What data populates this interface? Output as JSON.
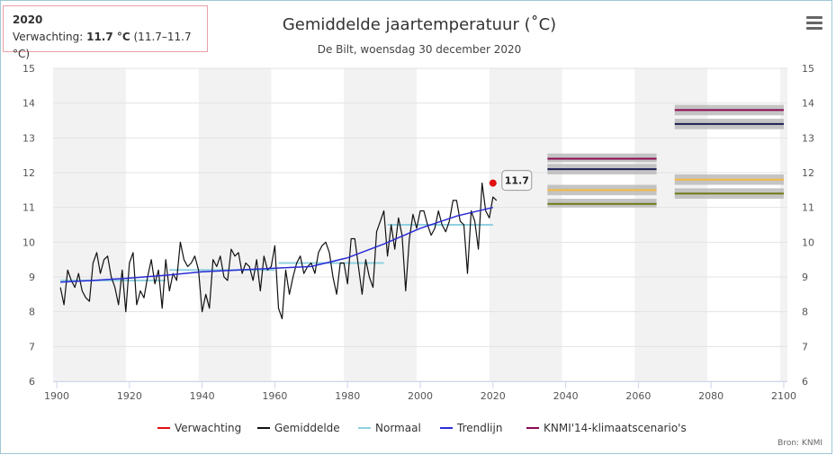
{
  "tooltip": {
    "year": "2020",
    "prefix": "Verwachting: ",
    "value": "11.7 °C",
    "range": " (11.7–11.7 °C)"
  },
  "source": "Bron: KNMI",
  "colors": {
    "forecast": "#e10e0e",
    "mean": "#111111",
    "normal": "#8fd0e0",
    "trend": "#2b2bd6",
    "scenario": "#8b0a50",
    "scenario_dark": "#1e1e55",
    "scenario_orange": "#f5b942",
    "scenario_olive": "#6f7a16",
    "band": "#bbbbbb",
    "alt_band": "#f2f2f2"
  },
  "chart_data": {
    "type": "line",
    "title": "Gemiddelde jaartemperatuur (˚C)",
    "subtitle": "De Bilt, woensdag 30 december 2020",
    "xlim": [
      1899,
      2101
    ],
    "ylim": [
      6,
      15
    ],
    "x_ticks": [
      1900,
      1920,
      1940,
      1960,
      1980,
      2000,
      2020,
      2040,
      2060,
      2080,
      2100
    ],
    "y_ticks": [
      6,
      7,
      8,
      9,
      10,
      11,
      12,
      13,
      14,
      15
    ],
    "alt_bands": [
      [
        1899,
        1919
      ],
      [
        1939,
        1959
      ],
      [
        1979,
        1999
      ],
      [
        2019,
        2039
      ],
      [
        2059,
        2079
      ],
      [
        2099,
        2101
      ]
    ],
    "legend": [
      "Verwachting",
      "Gemiddelde",
      "Normaal",
      "Trendlijn",
      "KNMI'14-klimaatscenario's"
    ],
    "legend_position": "bottom",
    "mean_series": {
      "name": "Gemiddelde",
      "x_start": 1901,
      "values": [
        8.7,
        8.2,
        9.2,
        8.9,
        8.7,
        9.1,
        8.6,
        8.4,
        8.3,
        9.4,
        9.7,
        9.1,
        9.5,
        9.6,
        9.0,
        8.7,
        8.2,
        9.2,
        8.0,
        9.4,
        9.7,
        8.2,
        8.6,
        8.4,
        9.0,
        9.5,
        8.8,
        9.2,
        8.1,
        9.5,
        8.6,
        9.1,
        8.9,
        10.0,
        9.5,
        9.3,
        9.4,
        9.6,
        9.2,
        8.0,
        8.5,
        8.1,
        9.5,
        9.3,
        9.6,
        9.0,
        8.9,
        9.8,
        9.6,
        9.7,
        9.1,
        9.4,
        9.3,
        8.9,
        9.5,
        8.6,
        9.6,
        9.2,
        9.3,
        9.9,
        8.1,
        7.8,
        9.2,
        8.5,
        9.0,
        9.4,
        9.6,
        9.1,
        9.3,
        9.4,
        9.1,
        9.7,
        9.9,
        10.0,
        9.7,
        9.0,
        8.5,
        9.4,
        9.4,
        8.8,
        10.1,
        10.1,
        9.3,
        8.5,
        9.5,
        9.0,
        8.7,
        10.3,
        10.6,
        10.9,
        9.6,
        10.5,
        9.8,
        10.7,
        10.2,
        8.6,
        10.1,
        10.8,
        10.4,
        10.9,
        10.9,
        10.5,
        10.2,
        10.4,
        10.9,
        10.5,
        10.3,
        10.6,
        11.2,
        11.2,
        10.6,
        10.5,
        9.1,
        10.9,
        10.6,
        9.8,
        11.7,
        10.9,
        10.7,
        11.3,
        11.2
      ],
      "x_first_index_note": ""
    },
    "forecast": {
      "x": 2020,
      "value": 11.7,
      "label": "11.7"
    },
    "normals": [
      {
        "x": [
          1901,
          1930
        ],
        "value": 8.9
      },
      {
        "x": [
          1931,
          1960
        ],
        "value": 9.2
      },
      {
        "x": [
          1961,
          1990
        ],
        "value": 9.4
      },
      {
        "x": [
          1991,
          2020
        ],
        "value": 10.5
      }
    ],
    "trend": {
      "x": [
        1901,
        1910,
        1920,
        1930,
        1940,
        1950,
        1960,
        1970,
        1980,
        1990,
        2000,
        2010,
        2020
      ],
      "values": [
        8.85,
        8.9,
        8.97,
        9.05,
        9.15,
        9.2,
        9.25,
        9.3,
        9.55,
        9.95,
        10.4,
        10.75,
        11.0
      ]
    },
    "scenarios": [
      {
        "x": [
          2035,
          2065
        ],
        "lines": [
          {
            "value": 12.4,
            "color_key": "scenario",
            "band": [
              12.3,
              12.55
            ]
          },
          {
            "value": 12.1,
            "color_key": "scenario_dark",
            "band": [
              11.95,
              12.25
            ]
          },
          {
            "value": 11.5,
            "color_key": "scenario_orange",
            "band": [
              11.35,
              11.65
            ]
          },
          {
            "value": 11.1,
            "color_key": "scenario_olive",
            "band": [
              11.0,
              11.25
            ]
          }
        ]
      },
      {
        "x": [
          2070,
          2100
        ],
        "lines": [
          {
            "value": 13.8,
            "color_key": "scenario",
            "band": [
              13.65,
              13.95
            ]
          },
          {
            "value": 13.4,
            "color_key": "scenario_dark",
            "band": [
              13.25,
              13.55
            ]
          },
          {
            "value": 11.8,
            "color_key": "scenario_orange",
            "band": [
              11.65,
              11.95
            ]
          },
          {
            "value": 11.4,
            "color_key": "scenario_olive",
            "band": [
              11.25,
              11.55
            ]
          }
        ]
      }
    ]
  }
}
